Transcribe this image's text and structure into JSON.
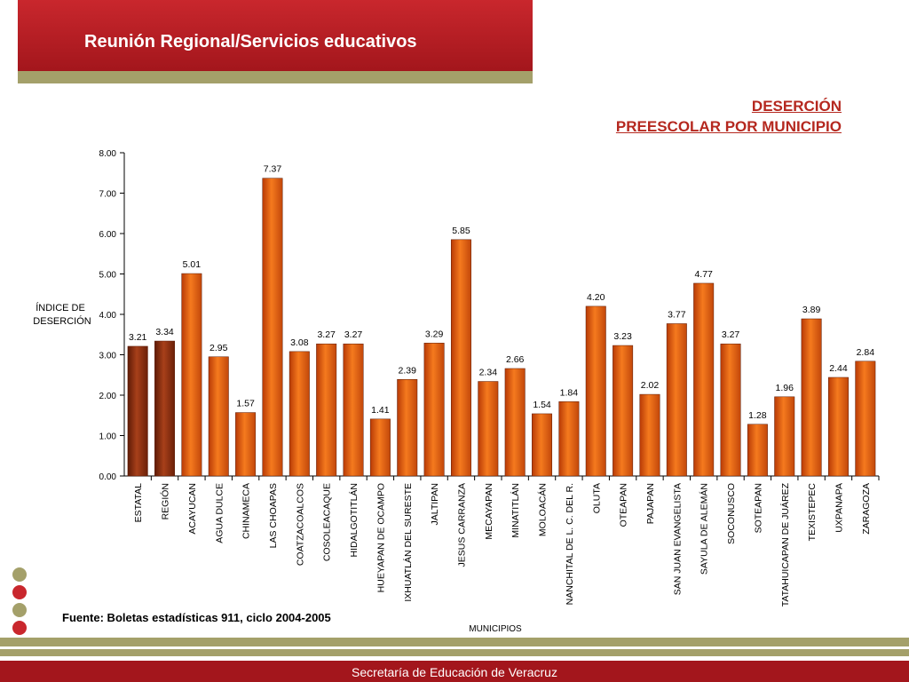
{
  "header": {
    "title": "Reunión Regional/Servicios educativos"
  },
  "footer": {
    "text": "Secretaría de Educación de Veracruz"
  },
  "source": "Fuente: Boletas estadísticas 911, ciclo 2004-2005",
  "colors": {
    "brand_red": "#a3161c",
    "olive": "#a4a06a",
    "bar_orange": "#e8590c",
    "bar_dark": "#8b2a0c",
    "title_red": "#b5281f"
  },
  "chart_data": {
    "type": "bar",
    "title": [
      "DESERCIÓN",
      "PREESCOLAR POR MUNICIPIO"
    ],
    "ylabel": [
      "ÍNDICE DE",
      "DESERCIÓN"
    ],
    "xlabel": "MUNICIPIOS",
    "ylim": [
      0,
      8
    ],
    "yticks": [
      "0.00",
      "1.00",
      "2.00",
      "3.00",
      "4.00",
      "5.00",
      "6.00",
      "7.00",
      "8.00"
    ],
    "categories": [
      "ESTATAL",
      "REGIÓN",
      "ACAYUCAN",
      "AGUA DULCE",
      "CHINAMECA",
      "LAS CHOAPAS",
      "COATZACOALCOS",
      "COSOLEACAQUE",
      "HIDALGOTITLÁN",
      "HUEYAPAN DE OCAMPO",
      "IXHUATLÁN DEL SURESTE",
      "JALTIPAN",
      "JESUS CARRANZA",
      "MECAYAPAN",
      "MINATITLÁN",
      "MOLOACÁN",
      "NANCHITAL DE L. C. DEL R.",
      "OLUTA",
      "OTEAPAN",
      "PAJAPAN",
      "SAN JUAN EVANGELISTA",
      "SAYULA DE ALEMÁN",
      "SOCONUSCO",
      "SOTEAPAN",
      "TATAHUICAPAN DE JUÁREZ",
      "TEXISTEPEC",
      "UXPANAPA",
      "ZARAGOZA"
    ],
    "values": [
      3.21,
      3.34,
      5.01,
      2.95,
      1.57,
      7.37,
      3.08,
      3.27,
      3.27,
      1.41,
      2.39,
      3.29,
      5.85,
      2.34,
      2.66,
      1.54,
      1.84,
      4.2,
      3.23,
      2.02,
      3.77,
      4.77,
      3.27,
      1.28,
      1.96,
      3.89,
      2.44,
      2.84
    ],
    "value_labels": [
      "3.21",
      "3.34",
      "5.01",
      "2.95",
      "1.57",
      "7.37",
      "3.08",
      "3.27",
      "3.27",
      "1.41",
      "2.39",
      "3.29",
      "5.85",
      "2.34",
      "2.66",
      "1.54",
      "1.84",
      "4.20",
      "3.23",
      "2.02",
      "3.77",
      "4.77",
      "3.27",
      "1.28",
      "1.96",
      "3.89",
      "2.44",
      "2.84"
    ],
    "highlight": [
      "ESTATAL",
      "REGIÓN"
    ],
    "grid": false,
    "legend": "none"
  }
}
